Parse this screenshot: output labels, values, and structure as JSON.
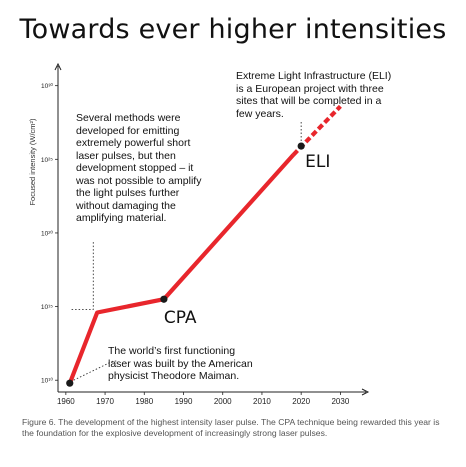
{
  "title": "Towards ever higher intensities",
  "chart_data": {
    "type": "line",
    "ylabel": "Focused intensity (W/cm²)",
    "y_scale": "log",
    "x_ticks": [
      1960,
      1970,
      1980,
      1990,
      2000,
      2010,
      2020,
      2030
    ],
    "y_ticks": [
      {
        "value": 10,
        "label": "10¹⁰"
      },
      {
        "value": 15,
        "label": "10¹⁵"
      },
      {
        "value": 20,
        "label": "10²⁰"
      },
      {
        "value": 25,
        "label": "10²⁵"
      },
      {
        "value": 30,
        "label": "10³⁰"
      }
    ],
    "xlim": [
      1958,
      2035
    ],
    "ylim_exponent": [
      9.2,
      31.2
    ],
    "series": [
      {
        "style": "solid",
        "color": "#e8262c",
        "points": [
          [
            1961,
            9.8
          ],
          [
            1968,
            14.6
          ],
          [
            1985,
            15.5
          ],
          [
            2018,
            25.3
          ]
        ]
      },
      {
        "style": "dashed",
        "color": "#e8262c",
        "points": [
          [
            2018,
            25.3
          ],
          [
            2030,
            28.6
          ]
        ]
      }
    ],
    "markers": [
      {
        "x": 1961,
        "y": 9.8
      },
      {
        "x": 1985,
        "y": 15.5
      },
      {
        "x": 2020,
        "y": 25.9
      }
    ],
    "marker_labels": [
      {
        "text": "CPA"
      },
      {
        "text": "ELI"
      }
    ],
    "annotations": [
      {
        "text": "Several methods were\ndeveloped for emitting\nextremely powerful short\nlaser pulses, but then\ndevelopment stopped – it\nwas not possible to amplify\nthe light pulses further\nwithout damaging the\namplifying material."
      },
      {
        "text": "Extreme Light Infrastructure (ELI)\nis a European project with three\nsites that will be completed in a\nfew years."
      },
      {
        "text": "The world’s first functioning\nlaser was built by the American\nphysicist Theodore Maiman."
      }
    ]
  },
  "caption": "Figure 6. The development of the highest intensity laser pulse. The CPA technique being rewarded this year is the foundation for the explosive development of increasingly strong laser pulses."
}
